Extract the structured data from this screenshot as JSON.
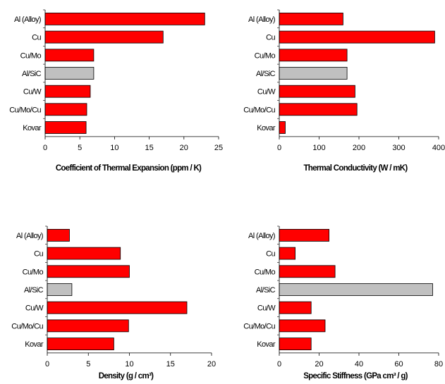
{
  "colors": {
    "bar": "#ff0000",
    "highlight": "#c0c0c0",
    "stroke": "#000000"
  },
  "chart_data": [
    {
      "type": "bar",
      "orientation": "horizontal",
      "categories": [
        "Al (Alloy)",
        "Cu",
        "Cu/Mo",
        "Al/SiC",
        "Cu/W",
        "Cu/Mo/Cu",
        "Kovar"
      ],
      "values": [
        23,
        17,
        7,
        7,
        6.5,
        6,
        5.9
      ],
      "highlight_category": "Al/SiC",
      "xlabel": "Coefficient of Thermal Expansion (ppm / K)",
      "xlim": [
        0,
        25
      ],
      "xticks": [
        0,
        5,
        10,
        15,
        20,
        25
      ]
    },
    {
      "type": "bar",
      "orientation": "horizontal",
      "categories": [
        "Al (Alloy)",
        "Cu",
        "Cu/Mo",
        "Al/SiC",
        "Cu/W",
        "Cu/Mo/Cu",
        "Kovar"
      ],
      "values": [
        160,
        390,
        170,
        170,
        190,
        195,
        15
      ],
      "highlight_category": "Al/SiC",
      "xlabel": "Thermal Conductivity (W / mK)",
      "xlim": [
        0,
        400
      ],
      "xticks": [
        0,
        100,
        200,
        300,
        400
      ]
    },
    {
      "type": "bar",
      "orientation": "horizontal",
      "categories": [
        "Al (Alloy)",
        "Cu",
        "Cu/Mo",
        "Al/SiC",
        "Cu/W",
        "Cu/Mo/Cu",
        "Kovar"
      ],
      "values": [
        2.7,
        8.9,
        10,
        3,
        17,
        9.9,
        8.1
      ],
      "highlight_category": "Al/SiC",
      "xlabel": "Density (g / cm³)",
      "xlim": [
        0,
        20
      ],
      "xticks": [
        0,
        5,
        10,
        15,
        20
      ]
    },
    {
      "type": "bar",
      "orientation": "horizontal",
      "categories": [
        "Al (Alloy)",
        "Cu",
        "Cu/Mo",
        "Al/SiC",
        "Cu/W",
        "Cu/Mo/Cu",
        "Kovar"
      ],
      "values": [
        25,
        8,
        28,
        77,
        16,
        23,
        16
      ],
      "highlight_category": "Al/SiC",
      "xlabel": "Specific Stiffness (GPa cm³ / g)",
      "xlim": [
        0,
        80
      ],
      "xticks": [
        0,
        20,
        40,
        60,
        80
      ]
    }
  ]
}
